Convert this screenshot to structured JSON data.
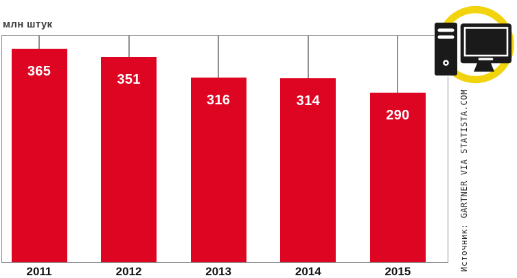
{
  "chart_data": {
    "type": "bar",
    "unit_label": "млн штук",
    "categories": [
      "2011",
      "2012",
      "2013",
      "2014",
      "2015"
    ],
    "values": [
      365,
      351,
      316,
      314,
      290
    ],
    "value_labels_position": "inside-top",
    "value_label_color": "#ffffff",
    "bar_color": "#dd0522",
    "line_color": "#8e8e8e",
    "ylim": [
      0,
      387
    ],
    "grid": false,
    "legend": "none",
    "source": "Источник: GARTNER VIA STATISTA.COM"
  },
  "icon": {
    "name": "desktop-computer-icon",
    "ring_color": "#f1d40e",
    "glyph_color": "#1a1a1a"
  }
}
